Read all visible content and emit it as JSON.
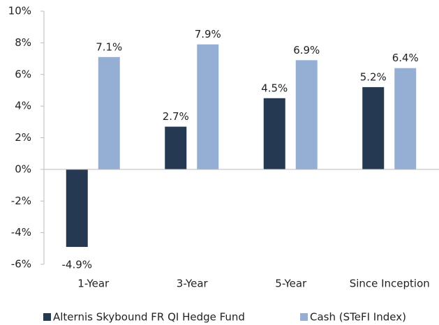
{
  "chart_data": {
    "type": "bar",
    "categories": [
      "1-Year",
      "3-Year",
      "5-Year",
      "Since Inception"
    ],
    "series": [
      {
        "name": "Alternis Skybound FR QI Hedge Fund",
        "color": "#253a52",
        "values": [
          -4.9,
          2.7,
          4.5,
          5.2
        ],
        "value_labels": [
          "-4.9%",
          "2.7%",
          "4.5%",
          "5.2%"
        ]
      },
      {
        "name": "Cash (STeFI Index)",
        "color": "#95afd4",
        "values": [
          7.1,
          7.9,
          6.9,
          6.4
        ],
        "value_labels": [
          "7.1%",
          "7.9%",
          "6.9%",
          "6.4%"
        ]
      }
    ],
    "ylim": [
      -6,
      10
    ],
    "yticks": [
      {
        "value": -6,
        "label": "-6%"
      },
      {
        "value": -4,
        "label": "-4%"
      },
      {
        "value": -2,
        "label": "-2%"
      },
      {
        "value": 0,
        "label": "0%"
      },
      {
        "value": 2,
        "label": "2%"
      },
      {
        "value": 4,
        "label": "4%"
      },
      {
        "value": 6,
        "label": "6%"
      },
      {
        "value": 8,
        "label": "8%"
      },
      {
        "value": 10,
        "label": "10%"
      }
    ],
    "grid": false,
    "legend": "bottom"
  }
}
